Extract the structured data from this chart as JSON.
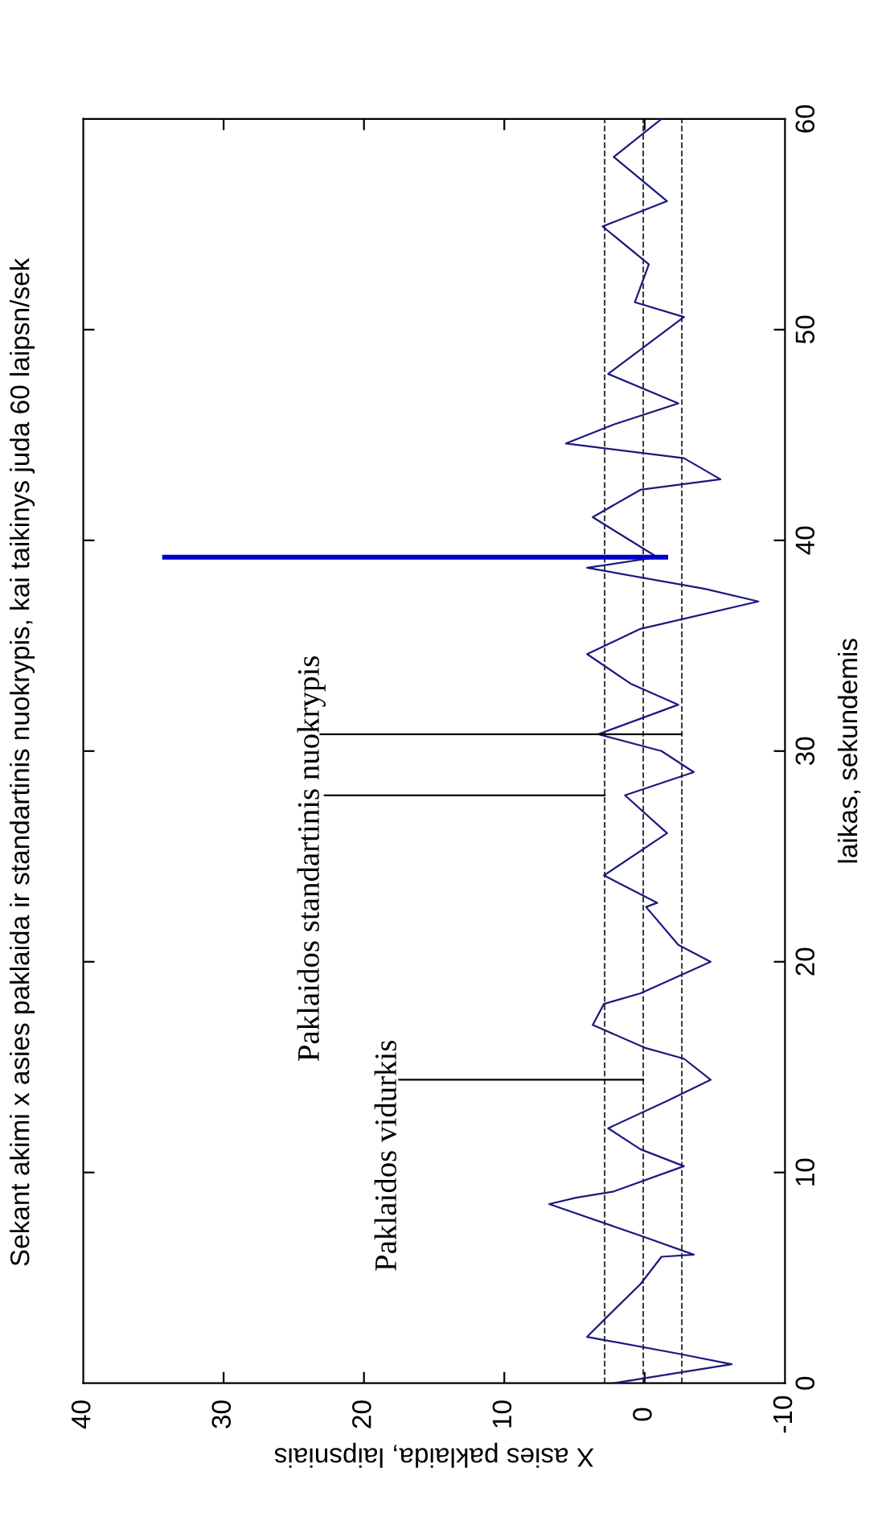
{
  "chart_data": {
    "type": "line",
    "title": "Sekant akimi x asies paklaida ir standartinis nuokrypis, kai taikinys juda 60 laipsn/sek",
    "xlabel": "X asies paklaida, laipsniais",
    "ylabel": "laikas, sekundemis",
    "annotations": [
      "Paklaidos vidurkis",
      "Paklaidos standartinis nuokrypis"
    ],
    "xlim": [
      40,
      -10
    ],
    "xticks": [
      40,
      30,
      20,
      10,
      0,
      -10
    ],
    "ylim": [
      0,
      60
    ],
    "yticks": [
      0,
      10,
      20,
      30,
      40,
      50,
      60
    ],
    "grid": false,
    "marker": "none",
    "line_style": "solid",
    "series": [
      {
        "color": "#1a1a80",
        "x": [
          2.2,
          -6.2,
          -2.4,
          4.1,
          2.6,
          0.3,
          -1.2,
          -3.5,
          0.3,
          6.8,
          4.9,
          2.2,
          -2.8,
          0.3,
          2.6,
          -1.6,
          -4.7,
          -2.8,
          -0.1,
          3.7,
          2.9,
          0.3,
          -4.7,
          -2.4,
          -0.1,
          -0.9,
          2.9,
          -1.6,
          1.4,
          -3.5,
          -1.2,
          3.3,
          -2.4,
          1.0,
          4.1,
          0.3,
          -8.1,
          -4.3,
          4.1,
          -0.9,
          3.7,
          0.3,
          -5.4,
          -2.8,
          5.6,
          2.2,
          -2.4,
          2.6,
          -2.8,
          0.7,
          -0.3,
          3.0,
          -1.6,
          2.2,
          -1.2
        ],
        "values": [
          0,
          0.9,
          1.4,
          2.2,
          3.2,
          4.7,
          6.0,
          6.1,
          7.0,
          8.5,
          8.8,
          9.1,
          10.3,
          11.1,
          12.1,
          13.4,
          14.4,
          15.4,
          15.9,
          17.0,
          18.0,
          18.5,
          20.0,
          20.8,
          22.6,
          22.8,
          24.1,
          26.1,
          27.9,
          29.0,
          30.0,
          30.8,
          32.2,
          33.2,
          34.6,
          35.8,
          37.1,
          37.7,
          38.7,
          39.2,
          41.1,
          42.4,
          42.9,
          43.9,
          44.6,
          45.5,
          46.5,
          47.9,
          50.6,
          51.3,
          53.1,
          54.9,
          56.1,
          58.2,
          60.0
        ]
      },
      {
        "color": "#0000cc",
        "x": [
          34.2,
          -1.5
        ],
        "values": [
          39.2,
          39.2
        ]
      },
      {
        "color": "#000000",
        "x": [
          17.5,
          0.1
        ],
        "values": [
          14.4,
          14.4
        ]
      },
      {
        "color": "#000000",
        "x": [
          22.8,
          2.85
        ],
        "values": [
          27.9,
          27.9
        ]
      },
      {
        "color": "#000000",
        "x": [
          23.1,
          -2.65
        ],
        "values": [
          30.8,
          30.8
        ]
      }
    ],
    "ref_lines": [
      {
        "axis": "x",
        "value": 2.85,
        "color": "#333333",
        "line_style": "dashed"
      },
      {
        "axis": "x",
        "value": 0.1,
        "color": "#333333",
        "line_style": "dashed"
      },
      {
        "axis": "x",
        "value": -2.65,
        "color": "#333333",
        "line_style": "dashed"
      }
    ]
  }
}
